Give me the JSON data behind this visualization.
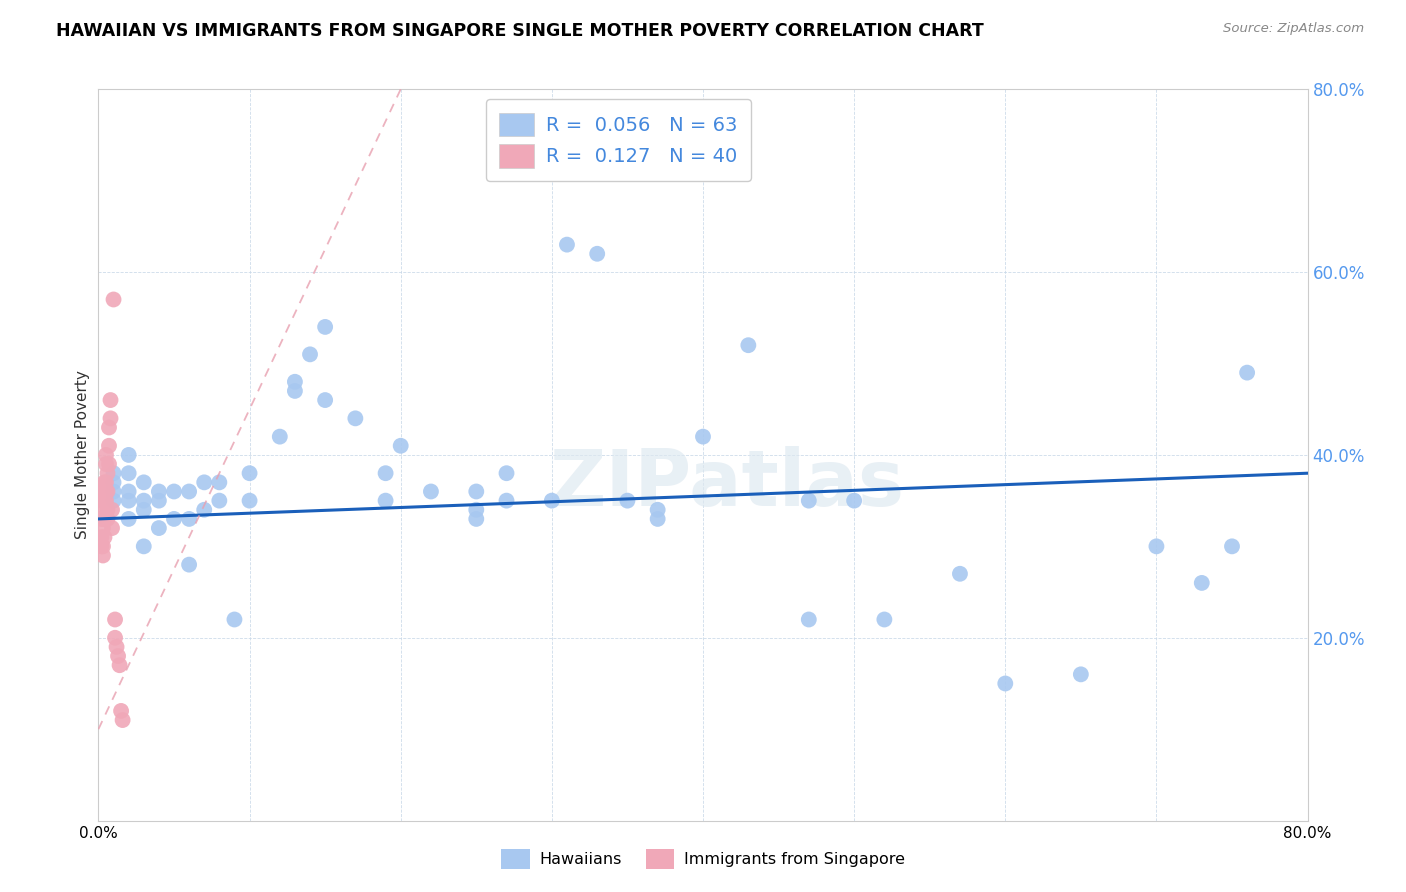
{
  "title": "HAWAIIAN VS IMMIGRANTS FROM SINGAPORE SINGLE MOTHER POVERTY CORRELATION CHART",
  "source": "Source: ZipAtlas.com",
  "ylabel": "Single Mother Poverty",
  "xlim": [
    0,
    0.8
  ],
  "ylim": [
    0,
    0.8
  ],
  "yticks": [
    0.2,
    0.4,
    0.6,
    0.8
  ],
  "xticks": [
    0.0,
    0.1,
    0.2,
    0.3,
    0.4,
    0.5,
    0.6,
    0.7,
    0.8
  ],
  "hawaiian_R": 0.056,
  "hawaiian_N": 63,
  "singapore_R": 0.127,
  "singapore_N": 40,
  "legend_label1": "Hawaiians",
  "legend_label2": "Immigrants from Singapore",
  "color_hawaiian": "#a8c8f0",
  "color_singapore": "#f0a8b8",
  "color_trend_hawaiian": "#1a5fba",
  "color_trend_singapore": "#e8a0b0",
  "watermark": "ZIPatlas",
  "hawaiian_x": [
    0.01,
    0.01,
    0.01,
    0.01,
    0.02,
    0.02,
    0.02,
    0.02,
    0.02,
    0.03,
    0.03,
    0.03,
    0.03,
    0.04,
    0.04,
    0.04,
    0.05,
    0.05,
    0.06,
    0.06,
    0.06,
    0.07,
    0.07,
    0.08,
    0.08,
    0.09,
    0.1,
    0.1,
    0.12,
    0.13,
    0.13,
    0.14,
    0.15,
    0.15,
    0.17,
    0.19,
    0.19,
    0.2,
    0.22,
    0.25,
    0.25,
    0.25,
    0.27,
    0.27,
    0.3,
    0.31,
    0.33,
    0.35,
    0.37,
    0.37,
    0.4,
    0.43,
    0.47,
    0.47,
    0.5,
    0.52,
    0.57,
    0.6,
    0.65,
    0.7,
    0.73,
    0.75,
    0.76
  ],
  "hawaiian_y": [
    0.35,
    0.36,
    0.37,
    0.38,
    0.33,
    0.35,
    0.36,
    0.38,
    0.4,
    0.3,
    0.34,
    0.35,
    0.37,
    0.32,
    0.35,
    0.36,
    0.33,
    0.36,
    0.28,
    0.33,
    0.36,
    0.34,
    0.37,
    0.35,
    0.37,
    0.22,
    0.35,
    0.38,
    0.42,
    0.47,
    0.48,
    0.51,
    0.54,
    0.46,
    0.44,
    0.35,
    0.38,
    0.41,
    0.36,
    0.33,
    0.34,
    0.36,
    0.35,
    0.38,
    0.35,
    0.63,
    0.62,
    0.35,
    0.33,
    0.34,
    0.42,
    0.52,
    0.35,
    0.22,
    0.35,
    0.22,
    0.27,
    0.15,
    0.16,
    0.3,
    0.26,
    0.3,
    0.49
  ],
  "singapore_x": [
    0.002,
    0.002,
    0.002,
    0.002,
    0.002,
    0.003,
    0.003,
    0.003,
    0.003,
    0.003,
    0.003,
    0.004,
    0.004,
    0.004,
    0.004,
    0.004,
    0.005,
    0.005,
    0.005,
    0.005,
    0.005,
    0.006,
    0.006,
    0.006,
    0.006,
    0.007,
    0.007,
    0.007,
    0.008,
    0.008,
    0.009,
    0.009,
    0.01,
    0.011,
    0.011,
    0.012,
    0.013,
    0.014,
    0.015,
    0.016
  ],
  "singapore_y": [
    0.35,
    0.34,
    0.33,
    0.31,
    0.3,
    0.36,
    0.35,
    0.33,
    0.32,
    0.3,
    0.29,
    0.37,
    0.36,
    0.35,
    0.33,
    0.31,
    0.4,
    0.39,
    0.37,
    0.36,
    0.35,
    0.38,
    0.36,
    0.34,
    0.33,
    0.43,
    0.41,
    0.39,
    0.46,
    0.44,
    0.34,
    0.32,
    0.57,
    0.22,
    0.2,
    0.19,
    0.18,
    0.17,
    0.12,
    0.11
  ]
}
